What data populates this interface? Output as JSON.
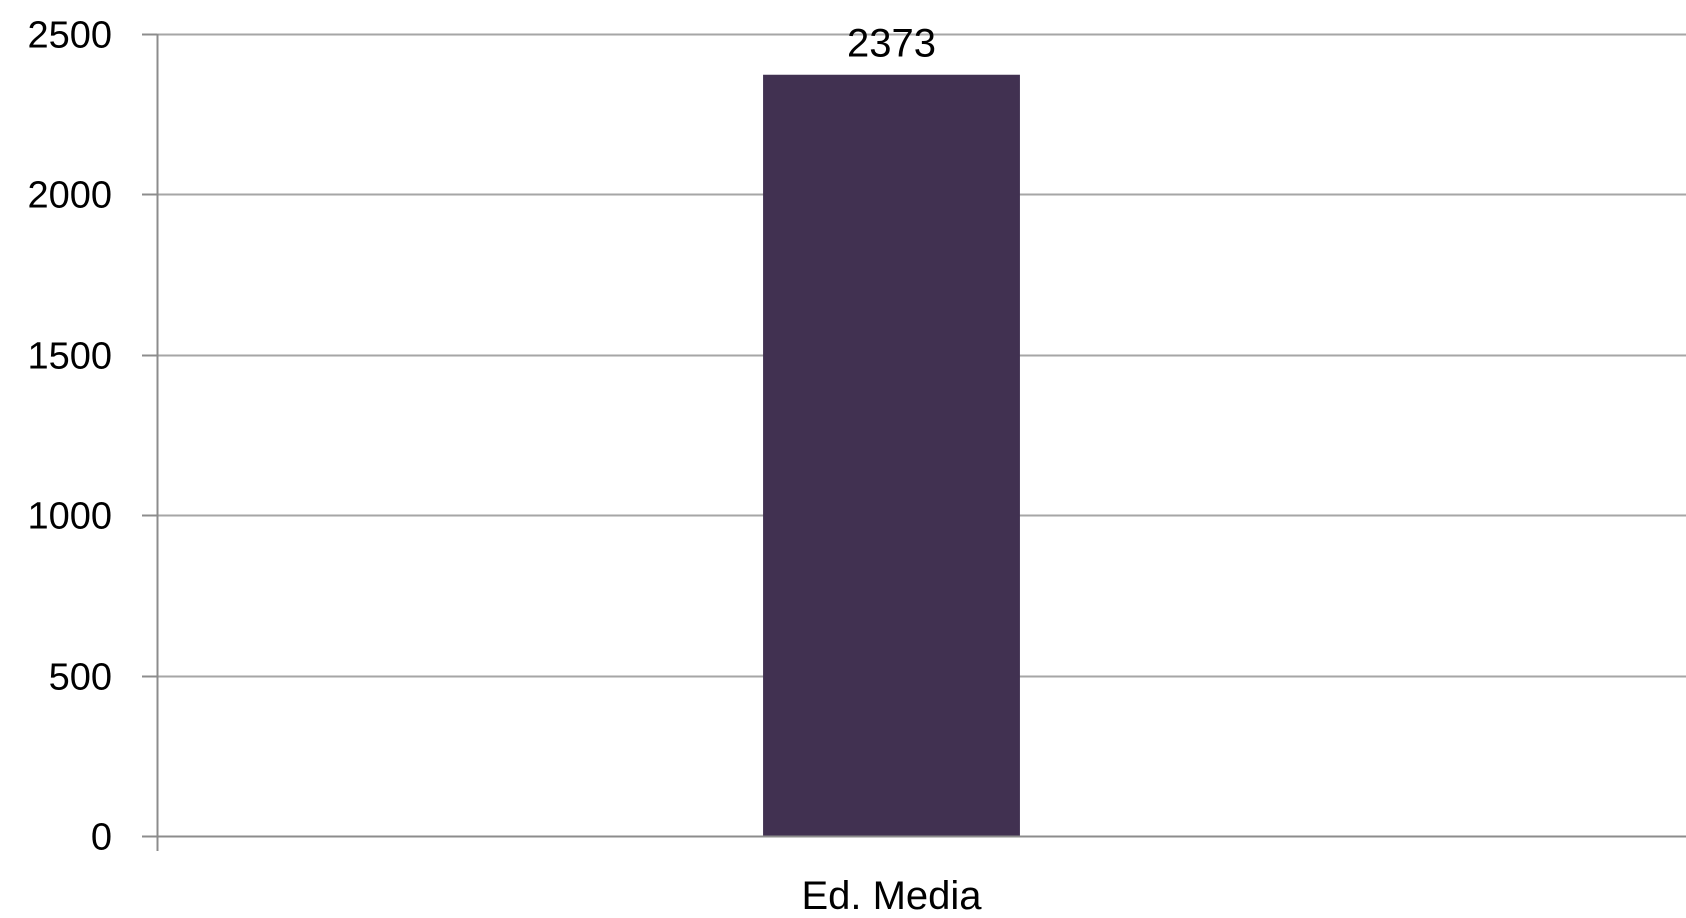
{
  "chart_data": {
    "type": "bar",
    "title": "",
    "xlabel": "",
    "ylabel": "",
    "categories": [
      "Ed. Media"
    ],
    "values": [
      2373
    ],
    "data_labels": [
      "2373"
    ],
    "ylim": [
      0,
      2500
    ],
    "y_ticks": [
      0,
      500,
      1000,
      1500,
      2000,
      2500
    ],
    "y_tick_labels": [
      "0",
      "500",
      "1000",
      "1500",
      "2000",
      "2500"
    ],
    "grid": true,
    "legend": "none",
    "colors": {
      "bar": "#413151",
      "grid": "#a6a6a6",
      "axis": "#8c8c8c",
      "text": "#000000"
    }
  }
}
